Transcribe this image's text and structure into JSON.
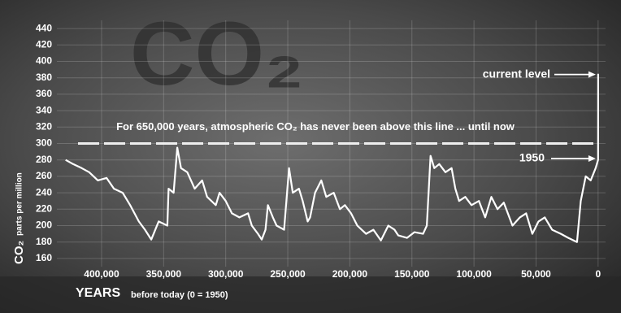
{
  "chart_data": {
    "type": "line",
    "watermark": "CO₂",
    "annotation": "For 650,000 years, atmospheric CO₂ has never been above this line ... until now",
    "threshold": 300,
    "callouts": [
      "current level",
      "1950"
    ],
    "y_label": {
      "main": "CO₂",
      "rest": "parts per million"
    },
    "x_label": {
      "main": "YEARS",
      "rest": "before today (0 = 1950)"
    },
    "x": [
      429000,
      423000,
      416000,
      410000,
      403000,
      396000,
      390000,
      383000,
      377000,
      370000,
      365000,
      360000,
      354000,
      347000,
      346000,
      342000,
      339000,
      336000,
      331000,
      325000,
      319000,
      315000,
      308000,
      305000,
      300000,
      295000,
      289000,
      282000,
      279000,
      274000,
      271000,
      268000,
      266000,
      262000,
      259000,
      253000,
      249000,
      246000,
      241000,
      238000,
      234000,
      232000,
      228000,
      223000,
      219000,
      213000,
      208000,
      204000,
      199000,
      194000,
      187000,
      181000,
      175000,
      169000,
      164000,
      161000,
      154000,
      148000,
      141000,
      138000,
      135000,
      132000,
      128000,
      123000,
      118000,
      115000,
      112000,
      107000,
      102000,
      96000,
      91000,
      86000,
      81000,
      76000,
      69000,
      63000,
      58000,
      53000,
      48000,
      43000,
      37000,
      30000,
      24000,
      17000,
      14000,
      10000,
      6000,
      2000,
      0,
      -57
    ],
    "series": [
      {
        "color": "#ffffff",
        "values": [
          280,
          275,
          270,
          265,
          255,
          258,
          245,
          240,
          225,
          205,
          195,
          183,
          205,
          200,
          245,
          240,
          295,
          270,
          265,
          245,
          255,
          235,
          225,
          240,
          230,
          215,
          210,
          215,
          200,
          190,
          183,
          195,
          225,
          210,
          200,
          195,
          270,
          240,
          245,
          230,
          205,
          210,
          240,
          255,
          235,
          240,
          220,
          225,
          215,
          200,
          190,
          195,
          182,
          200,
          195,
          188,
          185,
          192,
          190,
          200,
          285,
          270,
          275,
          265,
          270,
          245,
          230,
          235,
          225,
          230,
          210,
          235,
          220,
          228,
          200,
          210,
          215,
          190,
          205,
          210,
          195,
          190,
          185,
          180,
          230,
          260,
          255,
          270,
          280,
          385
        ]
      }
    ],
    "xlim": [
      436000,
      -6000
    ],
    "xticks": [
      {
        "value": 400000,
        "label": "400,000"
      },
      {
        "value": 350000,
        "label": "350,000"
      },
      {
        "value": 300000,
        "label": "300,000"
      },
      {
        "value": 250000,
        "label": "250,000"
      },
      {
        "value": 200000,
        "label": "200,000"
      },
      {
        "value": 150000,
        "label": "150,000"
      },
      {
        "value": 100000,
        "label": "100,000"
      },
      {
        "value": 50000,
        "label": "50,000"
      },
      0
    ],
    "ylim": [
      150,
      450
    ],
    "yticks": [
      160,
      180,
      200,
      220,
      240,
      260,
      280,
      300,
      320,
      340,
      360,
      380,
      400,
      420,
      440
    ],
    "grid": true
  }
}
